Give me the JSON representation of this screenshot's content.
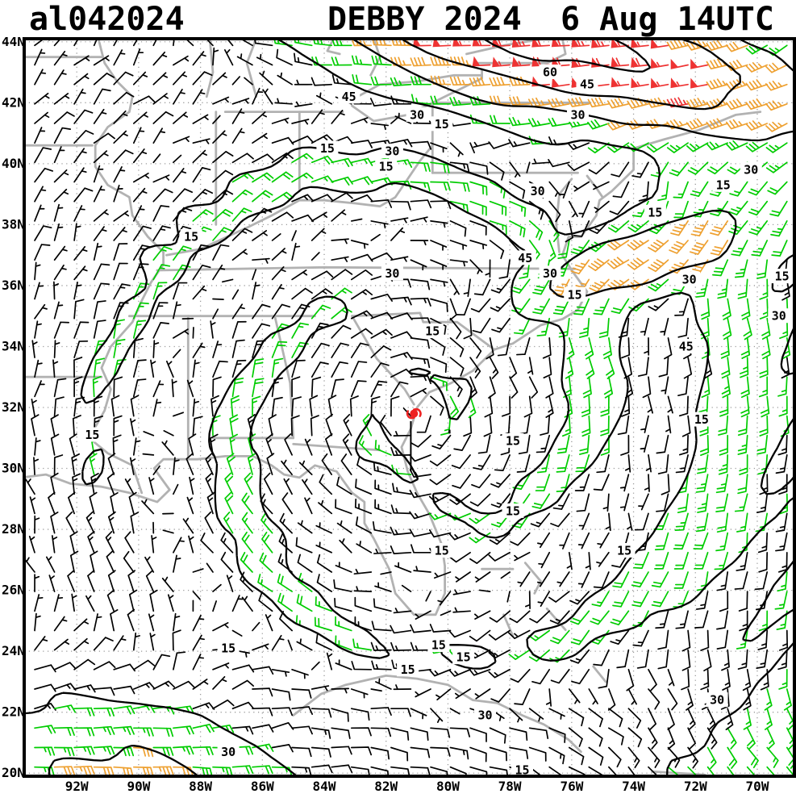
{
  "header": {
    "left_title": "al042024",
    "main_title": "DEBBY 2024  6 Aug 14UTC"
  },
  "colors": {
    "frame": "#000000",
    "grid": "#999999",
    "coastline": "#b2b2b2",
    "contour": "#000000",
    "storm_symbol": "#ee2222",
    "label_background": "#ffffff"
  },
  "chart_data": {
    "type": "wind_barb_map",
    "title": "DEBBY 2024  6 Aug 14UTC",
    "atcf_id": "al042024",
    "valid_time": "6 Aug 14UTC",
    "units": "knots",
    "domain": {
      "lon_min": -93.7,
      "lon_max": -68.8,
      "lat_min": 19.9,
      "lat_max": 44.1
    },
    "lat_ticks": [
      {
        "value": 20,
        "label": "20N"
      },
      {
        "value": 22,
        "label": "22N"
      },
      {
        "value": 24,
        "label": "24N"
      },
      {
        "value": 26,
        "label": "26N"
      },
      {
        "value": 28,
        "label": "28N"
      },
      {
        "value": 30,
        "label": "30N"
      },
      {
        "value": 32,
        "label": "32N"
      },
      {
        "value": 34,
        "label": "34N"
      },
      {
        "value": 36,
        "label": "36N"
      },
      {
        "value": 38,
        "label": "38N"
      },
      {
        "value": 40,
        "label": "40N"
      },
      {
        "value": 42,
        "label": "42N"
      },
      {
        "value": 44,
        "label": "44N"
      }
    ],
    "lon_ticks": [
      {
        "value": -92,
        "label": "92W"
      },
      {
        "value": -90,
        "label": "90W"
      },
      {
        "value": -88,
        "label": "88W"
      },
      {
        "value": -86,
        "label": "86W"
      },
      {
        "value": -84,
        "label": "84W"
      },
      {
        "value": -82,
        "label": "82W"
      },
      {
        "value": -80,
        "label": "80W"
      },
      {
        "value": -78,
        "label": "78W"
      },
      {
        "value": -76,
        "label": "76W"
      },
      {
        "value": -74,
        "label": "74W"
      },
      {
        "value": -72,
        "label": "72W"
      },
      {
        "value": -70,
        "label": "70W"
      }
    ],
    "contour_levels": [
      15,
      30,
      45,
      60
    ],
    "speed_colors": [
      {
        "max": 15,
        "hex": "#000000",
        "name": "under-15kt"
      },
      {
        "max": 30,
        "hex": "#00cc00",
        "name": "15-30kt"
      },
      {
        "max": 47,
        "hex": "#eea030",
        "name": "30-45kt"
      },
      {
        "max": 999,
        "hex": "#ee3333",
        "name": "over-45kt"
      }
    ],
    "storm_center": {
      "lon": -81.1,
      "lat": 31.8
    },
    "track_line": [
      [
        -81.2,
        31.55
      ],
      [
        -81.2,
        29.9
      ]
    ],
    "barb_grid_step_deg": 0.64,
    "contour_grid_step_deg": 0.25,
    "contour_labels": [
      {
        "v": 60,
        "lon": -76.7,
        "lat": 43.0
      },
      {
        "v": 45,
        "lon": -75.5,
        "lat": 42.6
      },
      {
        "v": 45,
        "lon": -83.2,
        "lat": 42.2
      },
      {
        "v": 30,
        "lon": -81.0,
        "lat": 41.6
      },
      {
        "v": 30,
        "lon": -75.8,
        "lat": 41.6
      },
      {
        "v": 15,
        "lon": -80.2,
        "lat": 41.3
      },
      {
        "v": 15,
        "lon": -83.9,
        "lat": 40.5
      },
      {
        "v": 30,
        "lon": -81.8,
        "lat": 40.4
      },
      {
        "v": 15,
        "lon": -82.0,
        "lat": 39.9
      },
      {
        "v": 30,
        "lon": -70.2,
        "lat": 39.8
      },
      {
        "v": 15,
        "lon": -71.1,
        "lat": 39.3
      },
      {
        "v": 30,
        "lon": -77.1,
        "lat": 39.1
      },
      {
        "v": 15,
        "lon": -73.3,
        "lat": 38.4
      },
      {
        "v": 15,
        "lon": -88.3,
        "lat": 37.6
      },
      {
        "v": 45,
        "lon": -77.5,
        "lat": 36.9
      },
      {
        "v": 30,
        "lon": -81.8,
        "lat": 36.4
      },
      {
        "v": 30,
        "lon": -76.7,
        "lat": 36.4
      },
      {
        "v": 30,
        "lon": -72.2,
        "lat": 36.2
      },
      {
        "v": 15,
        "lon": -69.2,
        "lat": 36.3
      },
      {
        "v": 15,
        "lon": -75.9,
        "lat": 35.7
      },
      {
        "v": 30,
        "lon": -69.3,
        "lat": 35.0
      },
      {
        "v": 15,
        "lon": -80.5,
        "lat": 34.5
      },
      {
        "v": 45,
        "lon": -72.3,
        "lat": 34.0
      },
      {
        "v": 15,
        "lon": -91.5,
        "lat": 31.1
      },
      {
        "v": 15,
        "lon": -71.8,
        "lat": 31.6
      },
      {
        "v": 15,
        "lon": -77.9,
        "lat": 30.9
      },
      {
        "v": 15,
        "lon": -77.9,
        "lat": 28.6
      },
      {
        "v": 15,
        "lon": -80.2,
        "lat": 27.3
      },
      {
        "v": 15,
        "lon": -74.3,
        "lat": 27.3
      },
      {
        "v": 15,
        "lon": -87.1,
        "lat": 24.1
      },
      {
        "v": 15,
        "lon": -80.3,
        "lat": 24.2
      },
      {
        "v": 15,
        "lon": -79.5,
        "lat": 23.8
      },
      {
        "v": 15,
        "lon": -81.3,
        "lat": 23.4
      },
      {
        "v": 30,
        "lon": -78.8,
        "lat": 21.9
      },
      {
        "v": 30,
        "lon": -87.1,
        "lat": 20.7
      },
      {
        "v": 30,
        "lon": -71.3,
        "lat": 22.4
      },
      {
        "v": 15,
        "lon": -77.6,
        "lat": 20.1
      }
    ],
    "wind_model": {
      "vortex": {
        "vmax": 15,
        "rmax": 1.3,
        "decay": 0.35
      },
      "spiral": {
        "r0": 8.2,
        "width": 4.0,
        "base": 0.25,
        "amp": 1.2,
        "arms": 2,
        "twist": 1.25,
        "phase": 2.2
      },
      "jet": {
        "speed": 72,
        "lat_ref": 47.5,
        "lat_slope": 0.22,
        "lat_width": 2.6,
        "lon_center": -77,
        "lon_width": 10
      },
      "ne_band": {
        "amp": 40,
        "lat_base": 36.6,
        "slope": 0.28,
        "lon_ref": -75,
        "lat_width": 1.4,
        "lon_center": -74,
        "lon_width": 4.5,
        "dir_u": 0.9,
        "dir_v": 0.44
      },
      "trades": {
        "amp": 18,
        "lat_ref": 19,
        "lat_width": 4,
        "west_boost": 1.3,
        "west_lon": -90.5,
        "west_width": 5
      },
      "east_flow": {
        "amp": 9,
        "lon_ref": -68.5,
        "lon_width": 5.5
      },
      "noise_amp": 1.6
    },
    "coastlines": [
      [
        [
          -93.8,
          29.7
        ],
        [
          -93.0,
          29.8
        ],
        [
          -92.2,
          29.5
        ],
        [
          -91.2,
          29.4
        ],
        [
          -90.3,
          29.2
        ],
        [
          -89.4,
          28.9
        ],
        [
          -89.0,
          29.3
        ],
        [
          -89.5,
          30.0
        ],
        [
          -89.2,
          30.3
        ],
        [
          -88.1,
          30.3
        ],
        [
          -87.2,
          30.4
        ],
        [
          -86.3,
          30.4
        ],
        [
          -85.7,
          30.1
        ],
        [
          -85.3,
          29.8
        ],
        [
          -84.8,
          29.7
        ],
        [
          -84.3,
          30.1
        ],
        [
          -83.6,
          29.9
        ],
        [
          -83.1,
          29.2
        ],
        [
          -82.7,
          28.9
        ],
        [
          -82.7,
          28.2
        ],
        [
          -82.4,
          27.7
        ],
        [
          -81.9,
          26.7
        ],
        [
          -81.7,
          25.9
        ],
        [
          -81.1,
          25.2
        ],
        [
          -80.4,
          25.2
        ],
        [
          -80.1,
          25.9
        ],
        [
          -80.1,
          26.8
        ],
        [
          -80.2,
          27.5
        ],
        [
          -80.6,
          28.5
        ],
        [
          -81.0,
          29.2
        ],
        [
          -81.3,
          29.9
        ],
        [
          -81.5,
          30.7
        ],
        [
          -81.2,
          31.3
        ],
        [
          -81.0,
          32.0
        ],
        [
          -80.6,
          32.5
        ],
        [
          -79.9,
          32.8
        ],
        [
          -79.2,
          33.2
        ],
        [
          -78.5,
          33.9
        ],
        [
          -77.9,
          34.1
        ],
        [
          -77.0,
          34.7
        ],
        [
          -76.3,
          34.9
        ],
        [
          -75.8,
          35.2
        ],
        [
          -75.5,
          35.8
        ],
        [
          -76.0,
          36.5
        ],
        [
          -76.3,
          37.0
        ],
        [
          -76.1,
          37.6
        ],
        [
          -75.7,
          37.6
        ],
        [
          -75.2,
          38.3
        ],
        [
          -75.1,
          38.8
        ],
        [
          -74.7,
          39.1
        ],
        [
          -74.0,
          39.8
        ],
        [
          -74.0,
          40.5
        ],
        [
          -73.0,
          40.8
        ],
        [
          -71.9,
          41.1
        ],
        [
          -70.7,
          41.6
        ],
        [
          -69.9,
          41.7
        ]
      ],
      [
        [
          -76.4,
          37.1
        ],
        [
          -76.5,
          38.0
        ],
        [
          -76.4,
          39.0
        ],
        [
          -76.0,
          39.5
        ]
      ],
      [
        [
          -75.5,
          39.6
        ],
        [
          -75.2,
          39.2
        ],
        [
          -75.0,
          38.9
        ]
      ],
      [
        [
          -89.9,
          29.2
        ],
        [
          -90.2,
          30.1
        ],
        [
          -91.0,
          30.5
        ],
        [
          -91.6,
          31.0
        ],
        [
          -91.1,
          31.9
        ],
        [
          -90.9,
          32.6
        ],
        [
          -91.2,
          33.3
        ],
        [
          -90.9,
          34.0
        ],
        [
          -90.2,
          34.8
        ],
        [
          -89.9,
          35.5
        ],
        [
          -89.6,
          36.1
        ],
        [
          -89.2,
          36.7
        ],
        [
          -89.2,
          37.1
        ],
        [
          -89.7,
          37.6
        ],
        [
          -90.2,
          38.3
        ],
        [
          -90.3,
          38.9
        ],
        [
          -91.0,
          39.3
        ],
        [
          -91.4,
          39.9
        ],
        [
          -91.4,
          40.6
        ],
        [
          -91.0,
          41.2
        ],
        [
          -90.3,
          41.7
        ],
        [
          -90.2,
          42.2
        ],
        [
          -90.7,
          42.7
        ],
        [
          -91.1,
          43.3
        ],
        [
          -91.3,
          44.1
        ]
      ],
      [
        [
          -89.4,
          36.5
        ],
        [
          -84.0,
          36.6
        ],
        [
          -75.9,
          36.55
        ]
      ],
      [
        [
          -90.3,
          35.0
        ],
        [
          -84.3,
          35.0
        ]
      ],
      [
        [
          -88.4,
          35.0
        ],
        [
          -88.4,
          30.3
        ]
      ],
      [
        [
          -85.6,
          35.0
        ],
        [
          -85.1,
          32.8
        ],
        [
          -85.0,
          31.0
        ]
      ],
      [
        [
          -87.6,
          31.0
        ],
        [
          -85.0,
          31.0
        ]
      ],
      [
        [
          -85.0,
          30.8
        ],
        [
          -82.2,
          30.6
        ]
      ],
      [
        [
          -83.1,
          35.0
        ],
        [
          -82.3,
          33.6
        ],
        [
          -81.4,
          32.6
        ],
        [
          -81.1,
          32.1
        ]
      ],
      [
        [
          -83.1,
          35.0
        ],
        [
          -80.9,
          35.1
        ],
        [
          -80.8,
          34.8
        ],
        [
          -79.7,
          34.8
        ],
        [
          -78.5,
          33.9
        ]
      ],
      [
        [
          -94.0,
          33.0
        ],
        [
          -91.2,
          33.0
        ]
      ],
      [
        [
          -94.0,
          40.6
        ],
        [
          -91.5,
          40.6
        ]
      ],
      [
        [
          -94.0,
          43.5
        ],
        [
          -91.2,
          43.5
        ]
      ],
      [
        [
          -89.1,
          37.0
        ],
        [
          -88.0,
          37.2
        ],
        [
          -86.5,
          37.9
        ],
        [
          -85.7,
          38.3
        ],
        [
          -84.8,
          38.8
        ],
        [
          -84.0,
          38.8
        ],
        [
          -83.0,
          38.7
        ],
        [
          -82.2,
          38.6
        ],
        [
          -81.7,
          38.9
        ],
        [
          -80.9,
          40.1
        ],
        [
          -80.5,
          40.6
        ]
      ],
      [
        [
          -80.5,
          42.0
        ],
        [
          -75.4,
          42.0
        ]
      ],
      [
        [
          -80.5,
          42.0
        ],
        [
          -80.5,
          39.7
        ]
      ],
      [
        [
          -80.5,
          39.7
        ],
        [
          -75.8,
          39.7
        ]
      ],
      [
        [
          -84.8,
          41.7
        ],
        [
          -84.8,
          39.1
        ]
      ],
      [
        [
          -87.5,
          41.7
        ],
        [
          -87.5,
          38.0
        ]
      ],
      [
        [
          -87.2,
          41.7
        ],
        [
          -83.4,
          41.7
        ]
      ],
      [
        [
          -83.1,
          41.9
        ],
        [
          -82.4,
          41.4
        ],
        [
          -81.3,
          41.6
        ],
        [
          -80.1,
          42.2
        ],
        [
          -78.9,
          42.8
        ],
        [
          -78.9,
          43.1
        ]
      ],
      [
        [
          -83.1,
          42.1
        ],
        [
          -82.2,
          42.6
        ],
        [
          -81.0,
          42.7
        ],
        [
          -79.8,
          42.9
        ],
        [
          -78.9,
          42.9
        ]
      ],
      [
        [
          -79.1,
          43.3
        ],
        [
          -77.8,
          43.3
        ],
        [
          -76.8,
          43.3
        ],
        [
          -76.2,
          43.6
        ],
        [
          -76.3,
          44.1
        ]
      ],
      [
        [
          -79.4,
          43.6
        ],
        [
          -78.1,
          43.9
        ],
        [
          -76.9,
          44.1
        ]
      ],
      [
        [
          -83.5,
          43.6
        ],
        [
          -83.9,
          43.7
        ],
        [
          -83.7,
          44.1
        ]
      ],
      [
        [
          -82.5,
          42.9
        ],
        [
          -82.2,
          43.5
        ],
        [
          -82.4,
          44.1
        ]
      ],
      [
        [
          -87.8,
          42.2
        ],
        [
          -87.6,
          43.0
        ],
        [
          -87.7,
          44.1
        ]
      ],
      [
        [
          -86.2,
          42.2
        ],
        [
          -86.5,
          43.3
        ],
        [
          -86.2,
          44.1
        ]
      ],
      [
        [
          -85.0,
          21.9
        ],
        [
          -84.1,
          22.6
        ],
        [
          -83.3,
          22.9
        ],
        [
          -82.0,
          23.2
        ],
        [
          -81.0,
          23.1
        ],
        [
          -80.0,
          22.9
        ],
        [
          -79.2,
          22.4
        ],
        [
          -78.4,
          22.3
        ],
        [
          -77.6,
          21.9
        ],
        [
          -76.9,
          21.6
        ],
        [
          -76.1,
          21.1
        ],
        [
          -75.7,
          20.7
        ]
      ],
      [
        [
          -78.9,
          26.7
        ],
        [
          -77.9,
          26.7
        ]
      ],
      [
        [
          -77.5,
          26.9
        ],
        [
          -77.0,
          26.3
        ],
        [
          -77.2,
          25.9
        ]
      ],
      [
        [
          -78.2,
          25.2
        ],
        [
          -77.9,
          24.5
        ]
      ],
      [
        [
          -76.8,
          25.4
        ],
        [
          -76.2,
          24.7
        ]
      ],
      [
        [
          -75.3,
          23.5
        ],
        [
          -74.9,
          23.0
        ]
      ],
      [
        [
          -73.4,
          20.05
        ],
        [
          -71.7,
          19.95
        ]
      ]
    ]
  }
}
